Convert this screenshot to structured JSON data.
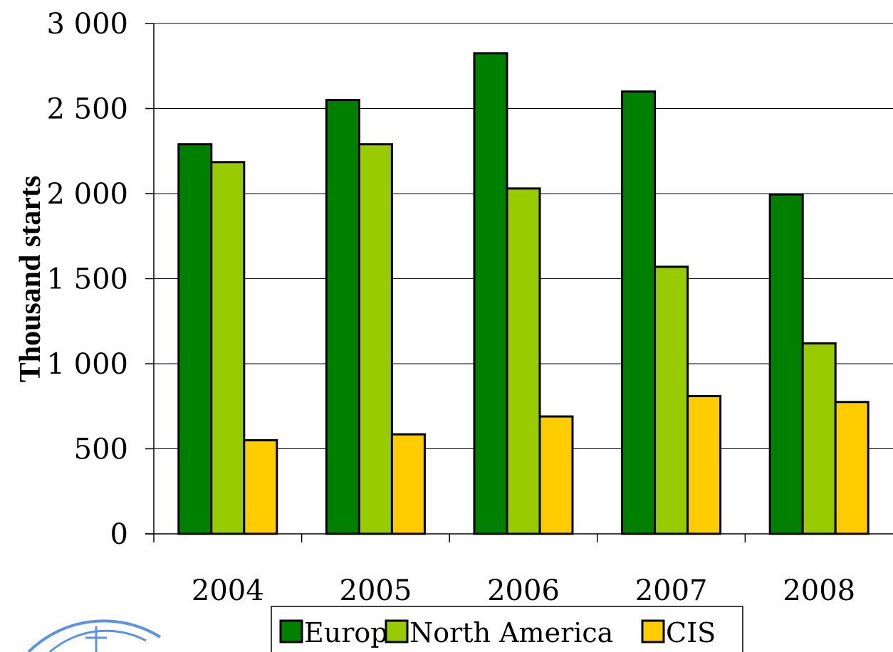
{
  "chart_data": {
    "type": "bar",
    "title": "",
    "xlabel": "",
    "ylabel": "Thousand starts",
    "ylim": [
      0,
      3000
    ],
    "yticks": [
      "0",
      "500",
      "1 000",
      "1 500",
      "2 000",
      "2 500",
      "3 000"
    ],
    "ytick_values": [
      0,
      500,
      1000,
      1500,
      2000,
      2500,
      3000
    ],
    "grid": true,
    "legend_position": "bottom",
    "categories": [
      "2004",
      "2005",
      "2006",
      "2007",
      "2008"
    ],
    "series": [
      {
        "name": "Europe",
        "color": "#008000",
        "values": [
          2290,
          2550,
          2825,
          2600,
          1995
        ]
      },
      {
        "name": "North America",
        "color": "#99cc00",
        "values": [
          2185,
          2290,
          2030,
          1570,
          1120
        ]
      },
      {
        "name": "CIS",
        "color": "#ffcc00",
        "values": [
          550,
          585,
          690,
          810,
          775
        ]
      }
    ]
  }
}
